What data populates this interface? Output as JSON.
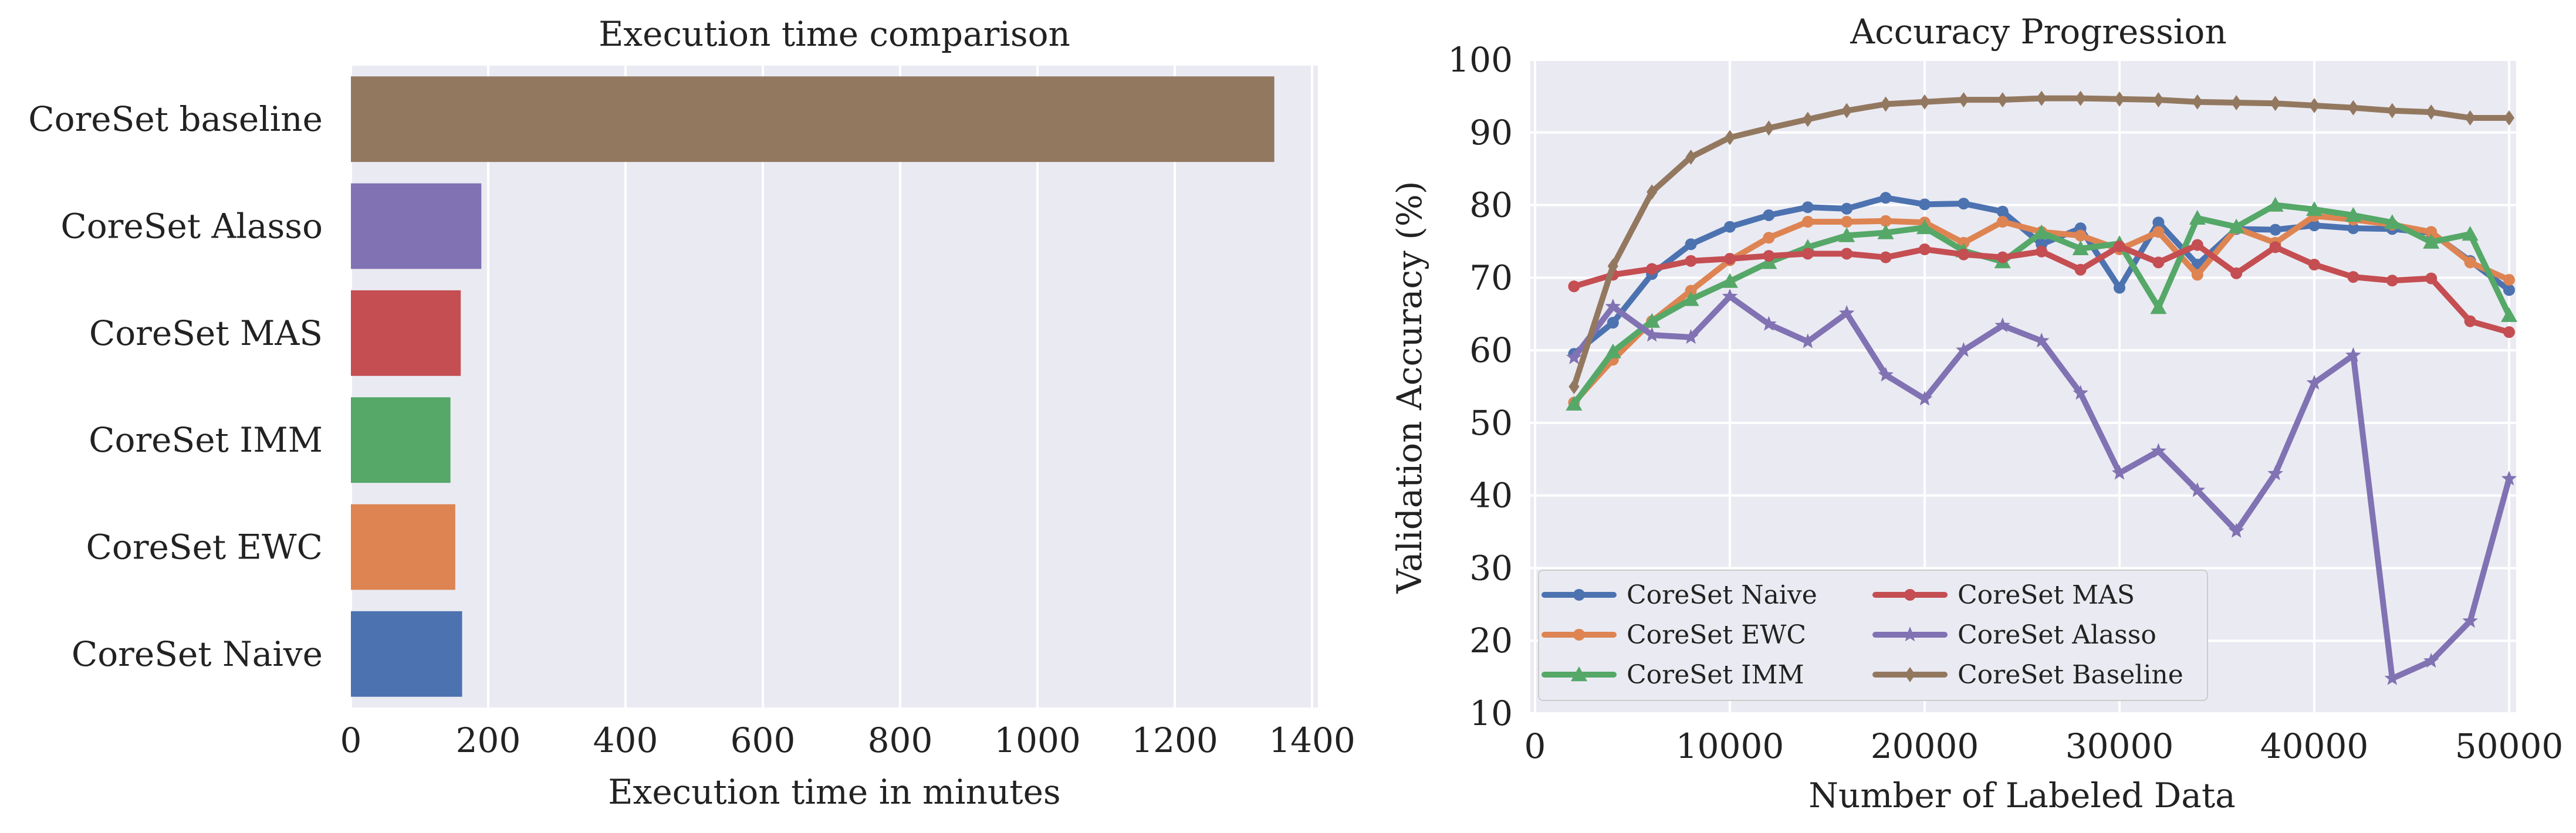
{
  "chart_data": [
    {
      "type": "bar",
      "orientation": "horizontal",
      "title": "Execution time comparison",
      "xlabel": "Execution time in minutes",
      "ylabel": "",
      "xlim": [
        0,
        1400
      ],
      "xticks": [
        0,
        200,
        400,
        600,
        800,
        1000,
        1200,
        1400
      ],
      "grid": true,
      "categories": [
        "CoreSet baseline",
        "CoreSet Alasso",
        "CoreSet MAS",
        "CoreSet IMM",
        "CoreSet EWC",
        "CoreSet Naive"
      ],
      "values": [
        1345,
        190,
        160,
        145,
        152,
        162
      ],
      "colors": [
        "#937860",
        "#8172b3",
        "#c44e52",
        "#55a868",
        "#dd8452",
        "#4c72b0"
      ]
    },
    {
      "type": "line",
      "title": "Accuracy Progression",
      "xlabel": "Number of Labeled Data",
      "ylabel": "Validation Accuracy (%)",
      "xlim": [
        0,
        50000
      ],
      "ylim": [
        10,
        100
      ],
      "xticks": [
        0,
        10000,
        20000,
        30000,
        40000,
        50000
      ],
      "yticks": [
        10,
        20,
        30,
        40,
        50,
        60,
        70,
        80,
        90,
        100
      ],
      "grid": true,
      "legend_position": "lower-left",
      "x": [
        2000,
        4000,
        6000,
        8000,
        10000,
        12000,
        14000,
        16000,
        18000,
        20000,
        22000,
        24000,
        26000,
        28000,
        30000,
        32000,
        34000,
        36000,
        38000,
        40000,
        42000,
        44000,
        46000,
        48000,
        50000
      ],
      "series": [
        {
          "name": "CoreSet Naive",
          "color": "#4c72b0",
          "marker": "circle",
          "values": [
            59.5,
            63.8,
            70.5,
            74.6,
            77.0,
            78.6,
            79.7,
            79.5,
            81.0,
            80.1,
            80.2,
            79.1,
            74.6,
            76.8,
            68.6,
            77.6,
            71.8,
            76.7,
            76.6,
            77.2,
            76.8,
            76.7,
            76.2,
            72.3,
            68.3
          ]
        },
        {
          "name": "CoreSet EWC",
          "color": "#dd8452",
          "marker": "circle",
          "values": [
            52.8,
            58.7,
            64.0,
            68.2,
            72.4,
            75.5,
            77.7,
            77.7,
            77.8,
            77.6,
            74.8,
            77.7,
            76.3,
            75.8,
            73.9,
            76.3,
            70.4,
            76.8,
            74.8,
            78.5,
            78.0,
            77.3,
            76.3,
            72.1,
            69.7
          ]
        },
        {
          "name": "CoreSet IMM",
          "color": "#55a868",
          "marker": "triangle",
          "values": [
            52.6,
            59.8,
            64.0,
            67.0,
            69.5,
            72.1,
            74.2,
            75.8,
            76.2,
            76.9,
            73.7,
            72.2,
            76.2,
            74.0,
            74.7,
            65.9,
            78.2,
            77.0,
            80.0,
            79.4,
            78.6,
            77.6,
            74.9,
            76.0,
            64.8
          ]
        },
        {
          "name": "CoreSet MAS",
          "color": "#c44e52",
          "marker": "circle",
          "values": [
            68.8,
            70.4,
            71.2,
            72.3,
            72.6,
            73.0,
            73.3,
            73.3,
            72.8,
            73.9,
            73.2,
            72.8,
            73.6,
            71.1,
            74.3,
            72.1,
            74.5,
            70.6,
            74.2,
            71.8,
            70.1,
            69.6,
            69.9,
            64.0,
            62.5
          ]
        },
        {
          "name": "CoreSet Alasso",
          "color": "#8172b3",
          "marker": "star",
          "values": [
            59.0,
            66.0,
            62.1,
            61.8,
            67.4,
            63.6,
            61.2,
            65.1,
            56.6,
            53.3,
            60.0,
            63.4,
            61.3,
            54.1,
            43.1,
            46.1,
            40.7,
            35.1,
            43.0,
            55.5,
            59.3,
            14.8,
            17.2,
            22.7,
            42.3
          ]
        },
        {
          "name": "CoreSet Baseline",
          "color": "#937860",
          "marker": "diamond",
          "values": [
            55.0,
            71.6,
            81.8,
            86.6,
            89.3,
            90.6,
            91.8,
            93.0,
            93.9,
            94.2,
            94.5,
            94.5,
            94.7,
            94.7,
            94.6,
            94.5,
            94.2,
            94.1,
            94.0,
            93.7,
            93.4,
            93.0,
            92.8,
            92.0,
            92.0
          ]
        }
      ]
    }
  ]
}
